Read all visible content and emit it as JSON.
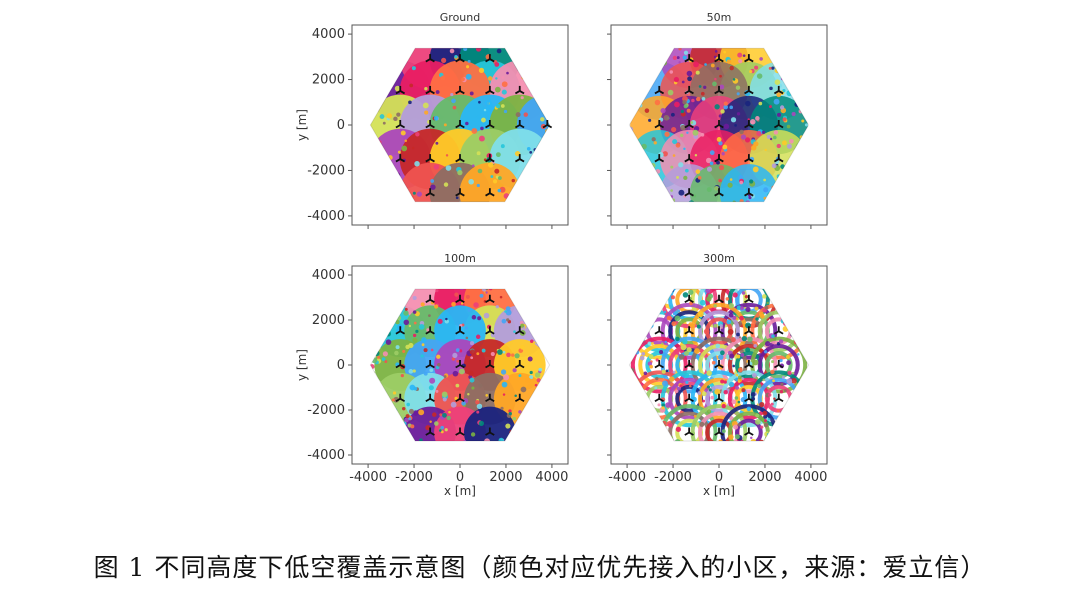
{
  "chart_data": [
    {
      "type": "scatter",
      "title": "Ground",
      "xlabel": "",
      "ylabel": "y [m]",
      "xlim": [
        -4700,
        4700
      ],
      "ylim": [
        -4400,
        4400
      ],
      "xticks": [
        -4000,
        -2000,
        0,
        2000,
        4000
      ],
      "yticks": [
        "4000",
        "2000",
        "0",
        "-2000",
        "-4000"
      ],
      "yticks_values": [
        4000,
        2000,
        0,
        -2000,
        -4000
      ],
      "hex_radius": 3900,
      "cell_pattern": "solid",
      "sites": [
        [
          -2600,
          1500
        ],
        [
          -1300,
          2900
        ],
        [
          0,
          2900
        ],
        [
          1300,
          2900
        ],
        [
          1300,
          1500
        ],
        [
          2600,
          1500
        ],
        [
          -1300,
          1500
        ],
        [
          0,
          1500
        ],
        [
          -2600,
          0
        ],
        [
          -1300,
          0
        ],
        [
          0,
          0
        ],
        [
          1300,
          0
        ],
        [
          2600,
          0
        ],
        [
          3800,
          0
        ],
        [
          -2600,
          -1500
        ],
        [
          -1300,
          -1500
        ],
        [
          0,
          -1500
        ],
        [
          1300,
          -1500
        ],
        [
          2600,
          -1500
        ],
        [
          -1300,
          -3000
        ],
        [
          0,
          -3000
        ],
        [
          1300,
          -3000
        ]
      ]
    },
    {
      "type": "scatter",
      "title": "50m",
      "xlabel": "",
      "ylabel": "",
      "xlim": [
        -4700,
        4700
      ],
      "ylim": [
        -4400,
        4400
      ],
      "xticks": [
        -4000,
        -2000,
        0,
        2000,
        4000
      ],
      "yticks": [
        4000,
        2000,
        0,
        -2000,
        -4000
      ],
      "hex_radius": 3900,
      "cell_pattern": "mixed",
      "sites": [
        [
          -2600,
          1500
        ],
        [
          -1300,
          2900
        ],
        [
          0,
          2900
        ],
        [
          1300,
          2900
        ],
        [
          1300,
          1500
        ],
        [
          2600,
          1500
        ],
        [
          -1300,
          1500
        ],
        [
          0,
          1500
        ],
        [
          -2600,
          0
        ],
        [
          -1300,
          0
        ],
        [
          0,
          0
        ],
        [
          1300,
          0
        ],
        [
          2600,
          0
        ],
        [
          -2600,
          -1500
        ],
        [
          -1300,
          -1500
        ],
        [
          0,
          -1500
        ],
        [
          1300,
          -1500
        ],
        [
          2600,
          -1500
        ],
        [
          -1300,
          -3000
        ],
        [
          0,
          -3000
        ],
        [
          1300,
          -3000
        ]
      ]
    },
    {
      "type": "scatter",
      "title": "100m",
      "xlabel": "x [m]",
      "ylabel": "y [m]",
      "xlim": [
        -4700,
        4700
      ],
      "ylim": [
        -4400,
        4400
      ],
      "xticks": [
        "-4000",
        "-2000",
        "0",
        "2000",
        "4000"
      ],
      "xticks_values": [
        -4000,
        -2000,
        0,
        2000,
        4000
      ],
      "yticks": [
        "4000",
        "2000",
        "0",
        "-2000",
        "-4000"
      ],
      "yticks_values": [
        4000,
        2000,
        0,
        -2000,
        -4000
      ],
      "hex_radius": 3900,
      "cell_pattern": "blobs",
      "sites": [
        [
          -2600,
          1500
        ],
        [
          -1300,
          2900
        ],
        [
          0,
          2900
        ],
        [
          1300,
          2900
        ],
        [
          1300,
          1500
        ],
        [
          2600,
          1500
        ],
        [
          -1300,
          1500
        ],
        [
          0,
          1500
        ],
        [
          -2600,
          0
        ],
        [
          -1300,
          0
        ],
        [
          0,
          0
        ],
        [
          1300,
          0
        ],
        [
          2600,
          0
        ],
        [
          -2600,
          -1500
        ],
        [
          -1300,
          -1500
        ],
        [
          0,
          -1500
        ],
        [
          1300,
          -1500
        ],
        [
          2600,
          -1500
        ],
        [
          -1300,
          -3000
        ],
        [
          0,
          -3000
        ],
        [
          1300,
          -3000
        ]
      ]
    },
    {
      "type": "scatter",
      "title": "300m",
      "xlabel": "x [m]",
      "ylabel": "",
      "xlim": [
        -4700,
        4700
      ],
      "ylim": [
        -4400,
        4400
      ],
      "xticks": [
        "-4000",
        "-2000",
        "0",
        "2000",
        "4000"
      ],
      "xticks_values": [
        -4000,
        -2000,
        0,
        2000,
        4000
      ],
      "yticks": [
        4000,
        2000,
        0,
        -2000,
        -4000
      ],
      "hex_radius": 3900,
      "cell_pattern": "rings",
      "sites": [
        [
          -2600,
          1500
        ],
        [
          -1300,
          2900
        ],
        [
          0,
          2900
        ],
        [
          1300,
          2900
        ],
        [
          1300,
          1500
        ],
        [
          2600,
          1500
        ],
        [
          -1300,
          1500
        ],
        [
          0,
          1500
        ],
        [
          -2600,
          0
        ],
        [
          -1300,
          0
        ],
        [
          0,
          0
        ],
        [
          1300,
          0
        ],
        [
          2600,
          0
        ],
        [
          -2600,
          -1500
        ],
        [
          -1300,
          -1500
        ],
        [
          0,
          -1500
        ],
        [
          1300,
          -1500
        ],
        [
          2600,
          -1500
        ],
        [
          -1300,
          -3000
        ],
        [
          0,
          -3000
        ],
        [
          1300,
          -3000
        ]
      ]
    }
  ],
  "palette": [
    "#6a1b9a",
    "#ef5350",
    "#ffca28",
    "#42a5f5",
    "#66bb6a",
    "#ff7043",
    "#26c6da",
    "#ec407a",
    "#8d6e63",
    "#9ccc65",
    "#ab47bc",
    "#29b6f6",
    "#d4e157",
    "#f48fb1",
    "#1a237e",
    "#ffa726",
    "#80deea",
    "#c62828",
    "#7cb342",
    "#b39ddb",
    "#e91e63",
    "#00897b"
  ],
  "caption": "图 1 不同高度下低空覆盖示意图（颜色对应优先接入的小区，来源：爱立信）"
}
